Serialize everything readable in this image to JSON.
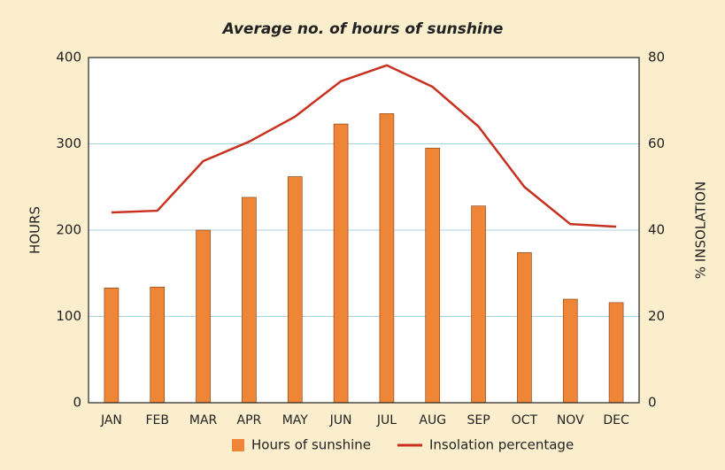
{
  "chart_data": {
    "type": "bar-line",
    "title": "Average no. of hours of sunshine",
    "y_label": "HOURS",
    "y2_label": "% INSOLATION",
    "categories": [
      "JAN",
      "FEB",
      "MAR",
      "APR",
      "MAY",
      "JUN",
      "JUL",
      "AUG",
      "SEP",
      "OCT",
      "NOV",
      "DEC"
    ],
    "series": [
      {
        "name": "Hours of sunshine",
        "type": "bar",
        "color": "#ef8536",
        "values": [
          133,
          134,
          200,
          238,
          262,
          323,
          335,
          295,
          228,
          174,
          120,
          116
        ]
      },
      {
        "name": "Insolation percentage",
        "type": "line",
        "axis": "y2",
        "color": "#c8311f",
        "values": [
          44.1,
          44.5,
          56,
          60.5,
          66.3,
          74.5,
          78.2,
          73.2,
          64,
          50,
          41.4,
          40.8
        ]
      }
    ],
    "ylim": [
      0,
      400
    ],
    "yticks": [
      0,
      100,
      200,
      300,
      400
    ],
    "y2lim": [
      0,
      80
    ],
    "y2ticks": [
      0,
      20,
      40,
      60,
      80
    ],
    "grid": true
  }
}
